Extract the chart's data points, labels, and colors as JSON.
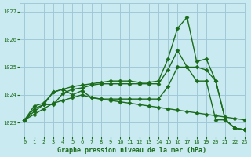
{
  "title": "Graphe pression niveau de la mer (hPa)",
  "background_color": "#c8eaf0",
  "grid_color": "#a0c8d8",
  "line_color": "#1a6b1a",
  "xlim": [
    -0.5,
    23
  ],
  "ylim": [
    1022.5,
    1027.3
  ],
  "yticks": [
    1023,
    1024,
    1025,
    1026,
    1027
  ],
  "xticks": [
    0,
    1,
    2,
    3,
    4,
    5,
    6,
    7,
    8,
    9,
    10,
    11,
    12,
    13,
    14,
    15,
    16,
    17,
    18,
    19,
    20,
    21,
    22,
    23
  ],
  "line1_x": [
    0,
    1,
    2,
    3,
    4,
    5,
    6,
    7,
    8,
    9,
    10,
    11,
    12,
    13,
    14,
    15,
    16,
    17,
    18,
    19,
    20,
    21,
    22,
    23
  ],
  "line1_y": [
    1023.1,
    1023.6,
    1023.7,
    1024.1,
    1024.2,
    1024.3,
    1024.35,
    1024.4,
    1024.45,
    1024.5,
    1024.5,
    1024.5,
    1024.45,
    1024.45,
    1024.5,
    1025.3,
    1026.4,
    1026.8,
    1025.2,
    1025.3,
    1024.5,
    1023.1,
    1022.8,
    1022.75
  ],
  "line2_x": [
    0,
    1,
    2,
    3,
    4,
    5,
    6,
    7,
    8,
    9,
    10,
    11,
    12,
    13,
    14,
    15,
    16,
    17,
    18,
    19,
    20,
    21,
    22,
    23
  ],
  "line2_y": [
    1023.1,
    1023.3,
    1023.5,
    1023.7,
    1023.8,
    1023.9,
    1024.0,
    1023.9,
    1023.85,
    1023.8,
    1023.75,
    1023.7,
    1023.65,
    1023.6,
    1023.55,
    1023.5,
    1023.45,
    1023.4,
    1023.35,
    1023.3,
    1023.25,
    1023.2,
    1023.15,
    1023.1
  ],
  "line3_x": [
    0,
    1,
    2,
    3,
    4,
    5,
    6,
    7,
    8,
    9,
    10,
    11,
    12,
    13,
    14,
    15,
    16,
    17,
    18,
    19,
    20,
    21,
    22,
    23
  ],
  "line3_y": [
    1023.1,
    1023.4,
    1023.65,
    1024.1,
    1024.2,
    1024.0,
    1024.15,
    1023.9,
    1023.85,
    1023.85,
    1023.85,
    1023.85,
    1023.85,
    1023.85,
    1023.85,
    1024.3,
    1025.0,
    1025.0,
    1024.5,
    1024.5,
    1023.1,
    1023.1,
    1022.8,
    1022.75
  ],
  "line4_x": [
    0,
    1,
    2,
    3,
    4,
    5,
    6,
    7,
    8,
    9,
    10,
    11,
    12,
    13,
    14,
    15,
    16,
    17,
    18,
    19,
    20,
    21,
    22,
    23
  ],
  "line4_y": [
    1023.1,
    1023.5,
    1023.65,
    1023.65,
    1024.05,
    1024.2,
    1024.25,
    1024.35,
    1024.4,
    1024.4,
    1024.4,
    1024.4,
    1024.4,
    1024.4,
    1024.4,
    1024.9,
    1025.6,
    1025.0,
    1025.0,
    1024.9,
    1024.5,
    1023.1,
    1022.8,
    1022.75
  ]
}
